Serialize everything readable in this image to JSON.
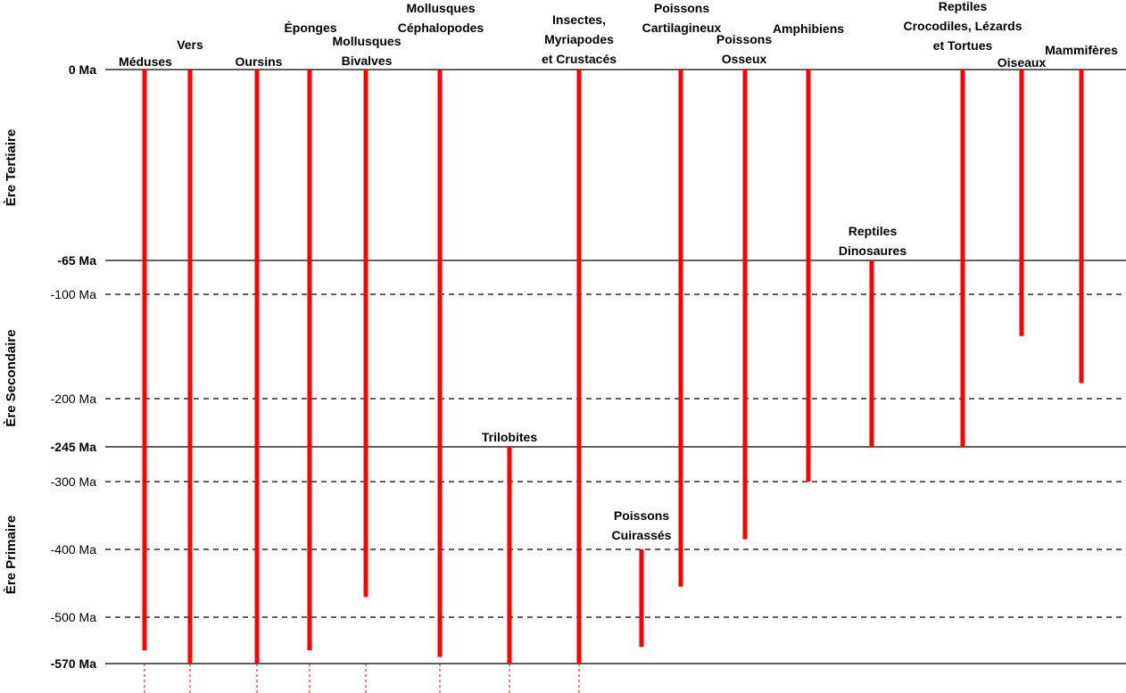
{
  "chart_data": {
    "type": "range-timeline",
    "time_unit": "Ma",
    "ticks": [
      {
        "value": 0,
        "label": "0 Ma",
        "bold": true,
        "line": "solid"
      },
      {
        "value": -65,
        "label": "-65 Ma",
        "bold": true,
        "line": "solid"
      },
      {
        "value": -100,
        "label": "-100 Ma",
        "bold": false,
        "line": "dashed"
      },
      {
        "value": -200,
        "label": "-200 Ma",
        "bold": false,
        "line": "dashed"
      },
      {
        "value": -245,
        "label": "-245 Ma",
        "bold": true,
        "line": "solid"
      },
      {
        "value": -300,
        "label": "-300 Ma",
        "bold": false,
        "line": "dashed"
      },
      {
        "value": -400,
        "label": "-400 Ma",
        "bold": false,
        "line": "dashed"
      },
      {
        "value": -500,
        "label": "-500 Ma",
        "bold": false,
        "line": "dashed"
      },
      {
        "value": -570,
        "label": "-570 Ma",
        "bold": true,
        "line": "solid"
      }
    ],
    "eras": [
      {
        "label": "Ère Tertiaire",
        "from": 0,
        "to": -65
      },
      {
        "label": "Ère Secondaire",
        "from": -65,
        "to": -245
      },
      {
        "label": "Ère Primaire",
        "from": -245,
        "to": -570
      }
    ],
    "groups": [
      {
        "name_lines": [
          "Méduses"
        ],
        "from": -550,
        "to": 0,
        "extends_before": true
      },
      {
        "name_lines": [
          "Vers"
        ],
        "from": -570,
        "to": 0,
        "extends_before": true
      },
      {
        "name_lines": [
          "Oursins"
        ],
        "from": -570,
        "to": 0,
        "extends_before": true
      },
      {
        "name_lines": [
          "Éponges"
        ],
        "from": -550,
        "to": 0,
        "extends_before": true
      },
      {
        "name_lines": [
          "Mollusques",
          "Bivalves"
        ],
        "from": -470,
        "to": 0,
        "extends_before": true
      },
      {
        "name_lines": [
          "Mollusques",
          "Céphalopodes"
        ],
        "from": -560,
        "to": 0,
        "extends_before": true
      },
      {
        "name_lines": [
          "Trilobites"
        ],
        "from": -570,
        "to": -245,
        "extends_before": true
      },
      {
        "name_lines": [
          "Insectes,",
          "Myriapodes",
          "et Crustacés"
        ],
        "from": -570,
        "to": 0,
        "extends_before": true
      },
      {
        "name_lines": [
          "Poissons",
          "Cuirassés"
        ],
        "from": -545,
        "to": -400,
        "extends_before": false
      },
      {
        "name_lines": [
          "Poissons",
          "Cartilagineux"
        ],
        "from": -455,
        "to": 0,
        "extends_before": false
      },
      {
        "name_lines": [
          "Poissons",
          "Osseux"
        ],
        "from": -385,
        "to": 0,
        "extends_before": false
      },
      {
        "name_lines": [
          "Amphibiens"
        ],
        "from": -300,
        "to": 0,
        "extends_before": false
      },
      {
        "name_lines": [
          "Reptiles",
          "Dinosaures"
        ],
        "from": -245,
        "to": -65,
        "extends_before": false
      },
      {
        "name_lines": [
          "Reptiles",
          "Crocodiles, Lézards",
          "et Tortues"
        ],
        "from": -245,
        "to": 0,
        "extends_before": false
      },
      {
        "name_lines": [
          "Oiseaux"
        ],
        "from": -140,
        "to": 0,
        "extends_before": false
      },
      {
        "name_lines": [
          "Mammifères"
        ],
        "from": -185,
        "to": 0,
        "extends_before": false
      }
    ]
  }
}
